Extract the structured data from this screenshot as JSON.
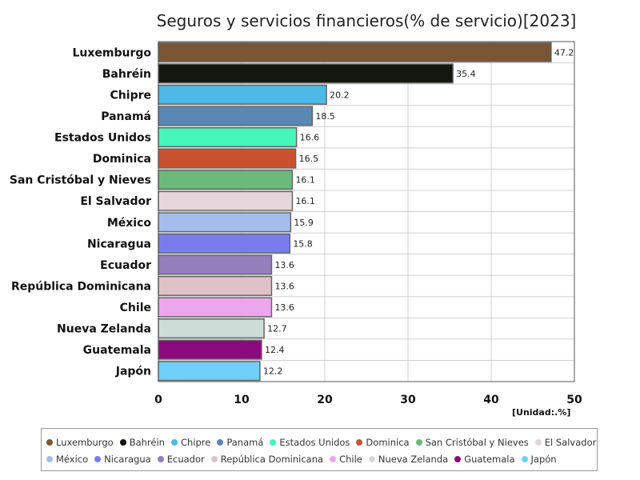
{
  "chart_data": {
    "type": "bar",
    "orientation": "horizontal",
    "title": "Seguros y servicios financieros(% de servicio)[2023]",
    "unit_label": "[Unidad:.%]",
    "xlim": [
      0,
      50
    ],
    "x_ticks": [
      "0",
      "10",
      "20",
      "30",
      "40",
      "50"
    ],
    "grid": true,
    "legend_position": "bottom",
    "categories": [
      "Luxemburgo",
      "Bahréin",
      "Chipre",
      "Panamá",
      "Estados Unidos",
      "Dominica",
      "San Cristóbal y Nieves",
      "El Salvador",
      "México",
      "Nicaragua",
      "Ecuador",
      "República Dominicana",
      "Chile",
      "Nueva Zelanda",
      "Guatemala",
      "Japón"
    ],
    "values": [
      47.2,
      35.4,
      20.2,
      18.5,
      16.6,
      16.5,
      16.1,
      16.1,
      15.9,
      15.8,
      13.6,
      13.6,
      13.6,
      12.7,
      12.4,
      12.2
    ],
    "value_labels": [
      "47.2",
      "35.4",
      "20.2",
      "18.5",
      "16.6",
      "16.5",
      "16.1",
      "16.1",
      "15.9",
      "15.8",
      "13.6",
      "13.6",
      "13.6",
      "12.7",
      "12.4",
      "12.2"
    ],
    "colors": [
      "#7B5634",
      "#121810",
      "#4DB9E6",
      "#5B87B4",
      "#45F6BA",
      "#C8522F",
      "#6ABB7B",
      "#E4D6DA",
      "#A4BCEC",
      "#7A7CEE",
      "#947EBB",
      "#DEC2C6",
      "#ECA6EE",
      "#CCDDD8",
      "#8C0A7E",
      "#70D0F9"
    ]
  }
}
